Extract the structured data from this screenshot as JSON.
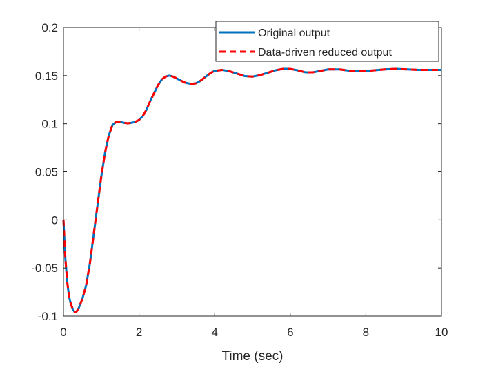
{
  "chart_data": {
    "type": "line",
    "title": "",
    "xlabel": "Time (sec)",
    "ylabel": "",
    "xlim": [
      0,
      10
    ],
    "ylim": [
      -0.1,
      0.2
    ],
    "xticks": [
      0,
      2,
      4,
      6,
      8,
      10
    ],
    "yticks": [
      -0.1,
      -0.05,
      0,
      0.05,
      0.1,
      0.15,
      0.2
    ],
    "xtick_labels": [
      "0",
      "2",
      "4",
      "6",
      "8",
      "10"
    ],
    "ytick_labels": [
      "-0.1",
      "-0.05",
      "0",
      "0.05",
      "0.1",
      "0.15",
      "0.2"
    ],
    "grid": false,
    "legend_position": "top-right",
    "x": [
      0,
      0.05,
      0.1,
      0.15,
      0.2,
      0.25,
      0.3,
      0.35,
      0.4,
      0.5,
      0.6,
      0.7,
      0.8,
      0.9,
      1.0,
      1.1,
      1.2,
      1.3,
      1.4,
      1.5,
      1.6,
      1.7,
      1.8,
      1.9,
      2.0,
      2.1,
      2.2,
      2.3,
      2.4,
      2.5,
      2.6,
      2.7,
      2.8,
      2.9,
      3.0,
      3.1,
      3.2,
      3.3,
      3.4,
      3.5,
      3.6,
      3.7,
      3.8,
      3.9,
      4.0,
      4.2,
      4.4,
      4.6,
      4.8,
      5.0,
      5.2,
      5.4,
      5.6,
      5.8,
      6.0,
      6.2,
      6.4,
      6.6,
      6.8,
      7.0,
      7.3,
      7.6,
      7.9,
      8.2,
      8.5,
      8.8,
      9.1,
      9.4,
      9.7,
      10.0
    ],
    "series": [
      {
        "name": "Original output",
        "color": "#0072BD",
        "style": "solid",
        "values": [
          0,
          -0.04,
          -0.065,
          -0.08,
          -0.088,
          -0.093,
          -0.096,
          -0.095,
          -0.092,
          -0.082,
          -0.068,
          -0.045,
          -0.015,
          0.015,
          0.045,
          0.07,
          0.088,
          0.099,
          0.102,
          0.102,
          0.101,
          0.1005,
          0.101,
          0.102,
          0.104,
          0.108,
          0.115,
          0.124,
          0.132,
          0.14,
          0.146,
          0.149,
          0.15,
          0.149,
          0.147,
          0.145,
          0.143,
          0.142,
          0.1415,
          0.142,
          0.144,
          0.147,
          0.15,
          0.153,
          0.155,
          0.156,
          0.1545,
          0.152,
          0.1495,
          0.149,
          0.1505,
          0.153,
          0.1555,
          0.157,
          0.157,
          0.1555,
          0.1535,
          0.1535,
          0.155,
          0.1565,
          0.1565,
          0.155,
          0.1545,
          0.1555,
          0.1565,
          0.157,
          0.1565,
          0.156,
          0.156,
          0.156
        ]
      },
      {
        "name": "Data-driven reduced output",
        "color": "#FF0000",
        "style": "dashed",
        "values": [
          0,
          -0.04,
          -0.065,
          -0.08,
          -0.088,
          -0.093,
          -0.096,
          -0.095,
          -0.092,
          -0.082,
          -0.068,
          -0.045,
          -0.015,
          0.015,
          0.045,
          0.07,
          0.088,
          0.099,
          0.102,
          0.102,
          0.101,
          0.1005,
          0.101,
          0.102,
          0.104,
          0.108,
          0.115,
          0.124,
          0.132,
          0.14,
          0.146,
          0.149,
          0.15,
          0.149,
          0.147,
          0.145,
          0.143,
          0.142,
          0.1415,
          0.142,
          0.144,
          0.147,
          0.15,
          0.153,
          0.155,
          0.156,
          0.1545,
          0.152,
          0.1495,
          0.149,
          0.1505,
          0.153,
          0.1555,
          0.157,
          0.157,
          0.1555,
          0.1535,
          0.1535,
          0.155,
          0.1565,
          0.1565,
          0.155,
          0.1545,
          0.1555,
          0.1565,
          0.157,
          0.1565,
          0.156,
          0.156,
          0.156
        ]
      }
    ]
  }
}
